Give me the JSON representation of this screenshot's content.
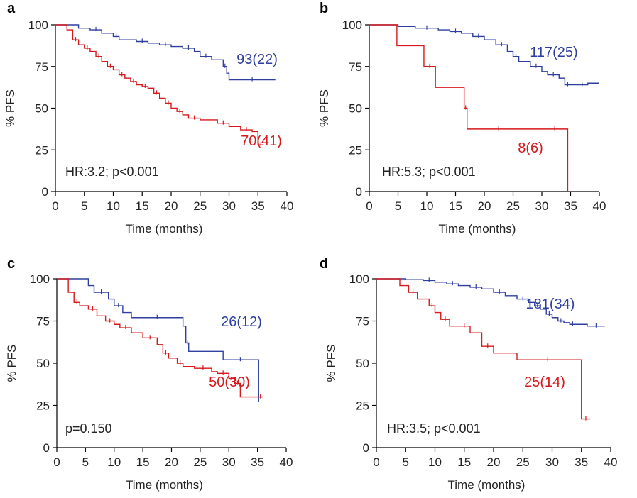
{
  "chart_data": [
    {
      "panel_label": "a",
      "type": "line",
      "step": true,
      "xlabel": "Time (months)",
      "ylabel": "% PFS",
      "xlim": [
        0,
        40
      ],
      "ylim": [
        0,
        100
      ],
      "xticks": [
        0,
        5,
        10,
        15,
        20,
        25,
        30,
        35,
        40
      ],
      "yticks": [
        0,
        25,
        50,
        75,
        100
      ],
      "annotation": "HR:3.2; p<0.001",
      "series": [
        {
          "label": "93(22)",
          "color": "#2e3f9f",
          "x": [
            0,
            4,
            6,
            8,
            10,
            11,
            14,
            16,
            18,
            20,
            22,
            24,
            25,
            27,
            29,
            29.6,
            30,
            38
          ],
          "y": [
            100,
            98,
            97,
            95,
            93,
            91,
            90,
            89,
            88,
            87,
            86,
            84,
            81,
            79,
            75,
            71,
            67,
            67
          ]
        },
        {
          "label": "70(41)",
          "color": "#d7191c",
          "x": [
            0,
            2,
            3,
            4,
            5,
            6,
            7,
            8,
            9,
            10,
            11,
            12,
            13,
            14,
            15,
            16,
            17,
            18,
            19,
            20,
            21,
            22,
            23,
            25,
            28,
            30,
            32,
            34,
            35,
            36
          ],
          "y": [
            100,
            97,
            91,
            88,
            86,
            84,
            81,
            78,
            75,
            73,
            70,
            68,
            66,
            64,
            63,
            62,
            59,
            56,
            53,
            50,
            48,
            46,
            44,
            43,
            41,
            39,
            37,
            36,
            28,
            28
          ]
        }
      ]
    },
    {
      "panel_label": "b",
      "type": "line",
      "step": true,
      "xlabel": "Time (months)",
      "ylabel": "% PFS",
      "xlim": [
        0,
        40
      ],
      "ylim": [
        0,
        100
      ],
      "xticks": [
        0,
        5,
        10,
        15,
        20,
        25,
        30,
        35,
        40
      ],
      "yticks": [
        0,
        25,
        50,
        75,
        100
      ],
      "annotation": "HR:5.3; p<0.001",
      "series": [
        {
          "label": "117(25)",
          "color": "#2e3f9f",
          "x": [
            0,
            5,
            8,
            12,
            14,
            16,
            18,
            20,
            22,
            24,
            25,
            26,
            28,
            30,
            31,
            33,
            34,
            35,
            36,
            38,
            40
          ],
          "y": [
            100,
            99,
            98,
            97,
            96,
            95,
            93,
            91,
            88,
            84,
            81,
            78,
            75,
            72,
            70,
            68,
            64,
            64,
            64,
            65,
            65
          ]
        },
        {
          "label": "8(6)",
          "color": "#d7191c",
          "x": [
            0,
            4.8,
            9.5,
            11.5,
            16.5,
            17,
            20,
            25,
            30,
            34.5
          ],
          "y": [
            100,
            87.5,
            75,
            62.5,
            50,
            37.5,
            37.5,
            37.5,
            37.5,
            0
          ]
        }
      ]
    },
    {
      "panel_label": "c",
      "type": "line",
      "step": true,
      "xlabel": "Time (months)",
      "ylabel": "% PFS",
      "xlim": [
        0,
        40
      ],
      "ylim": [
        0,
        100
      ],
      "xticks": [
        0,
        5,
        10,
        15,
        20,
        25,
        30,
        35,
        40
      ],
      "yticks": [
        0,
        25,
        50,
        75,
        100
      ],
      "annotation": "p=0.150",
      "series": [
        {
          "label": "26(12)",
          "color": "#2e3f9f",
          "x": [
            0,
            5.5,
            6.5,
            9,
            10,
            11.5,
            13,
            22,
            22.5,
            23,
            29,
            35,
            35.2
          ],
          "y": [
            100,
            96,
            92,
            88,
            84,
            80,
            77,
            72,
            62,
            57,
            52,
            52,
            27
          ]
        },
        {
          "label": "50(30)",
          "color": "#d7191c",
          "x": [
            0,
            2,
            3,
            4,
            5.5,
            7,
            8.5,
            10,
            11,
            13,
            15,
            17.5,
            18.5,
            19.5,
            21,
            22,
            24,
            27,
            28,
            30,
            31,
            32,
            35,
            36
          ],
          "y": [
            100,
            92,
            86,
            84,
            82,
            78,
            75,
            73,
            71,
            68,
            65,
            61,
            56,
            53,
            50,
            48,
            47,
            45,
            44,
            41,
            38,
            30,
            30,
            30
          ]
        }
      ]
    },
    {
      "panel_label": "d",
      "type": "line",
      "step": true,
      "xlabel": "Time (months)",
      "ylabel": "% PFS",
      "xlim": [
        0,
        40
      ],
      "ylim": [
        0,
        100
      ],
      "xticks": [
        0,
        5,
        10,
        15,
        20,
        25,
        30,
        35,
        40
      ],
      "yticks": [
        0,
        25,
        50,
        75,
        100
      ],
      "annotation": "HR:3.5; p<0.001",
      "series": [
        {
          "label": "181(34)",
          "color": "#2e3f9f",
          "x": [
            0,
            5,
            8,
            10,
            12,
            14,
            16,
            18,
            20,
            22,
            24,
            26,
            27,
            28,
            29,
            30,
            31,
            32,
            33,
            34,
            36,
            39
          ],
          "y": [
            100,
            99.5,
            99,
            98,
            97,
            96,
            95,
            94,
            92,
            90,
            88,
            86,
            84,
            82,
            79,
            77,
            75,
            74,
            73,
            73,
            72,
            72
          ]
        },
        {
          "label": "25(14)",
          "color": "#d7191c",
          "x": [
            0,
            4,
            5.5,
            7,
            9,
            10,
            11,
            12.5,
            14,
            16,
            18,
            20,
            24,
            34.5,
            35,
            36.5
          ],
          "y": [
            100,
            96,
            92,
            88,
            84,
            80,
            76,
            72,
            72,
            68,
            60,
            56,
            52,
            52,
            17,
            17
          ]
        }
      ]
    }
  ]
}
